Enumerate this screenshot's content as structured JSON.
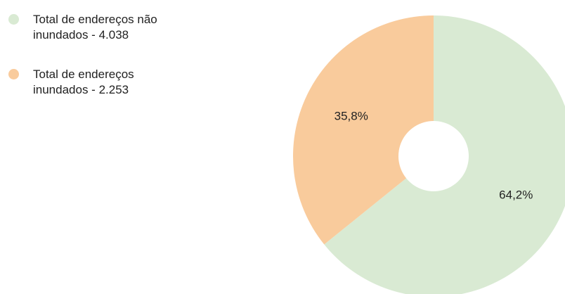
{
  "chart_data": {
    "type": "pie",
    "categories": [
      "Total de endereços não inundados - 4.038",
      "Total de endereços inundados - 2.253"
    ],
    "values": [
      64.2,
      35.8
    ],
    "value_labels": [
      "64,2%",
      "35,8%"
    ],
    "colors": [
      "#d9ead3",
      "#f9cb9c"
    ],
    "donut": true
  }
}
